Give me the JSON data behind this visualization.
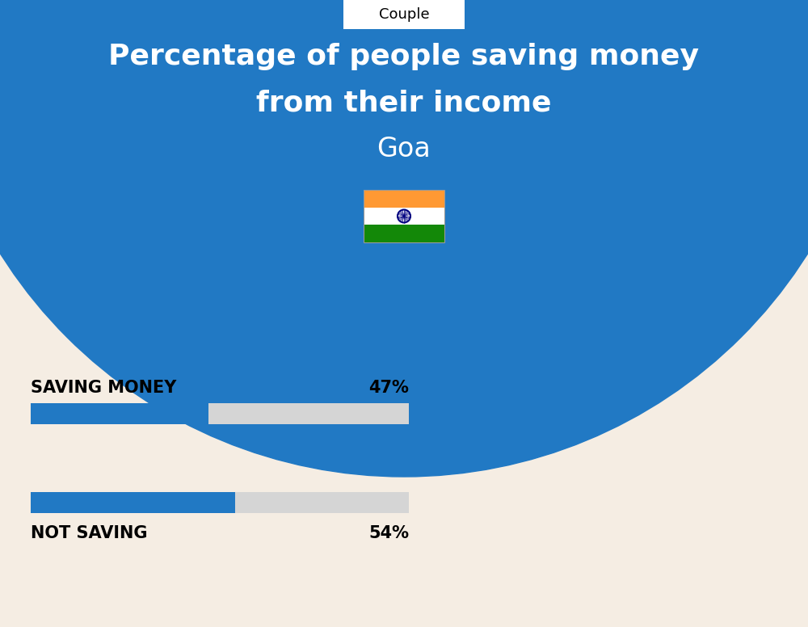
{
  "title_line1": "Percentage of people saving money",
  "title_line2": "from their income",
  "subtitle": "Goa",
  "tab_label": "Couple",
  "background_color": "#F5EDE3",
  "blue_color": "#2179C4",
  "bar_bg_color": "#D5D5D5",
  "bar_active_color": "#2179C4",
  "category1_label": "SAVING MONEY",
  "category1_value": 47,
  "category1_pct": "47%",
  "category2_label": "NOT SAVING",
  "category2_value": 54,
  "category2_pct": "54%",
  "bar_max": 100,
  "title_color": "#FFFFFF",
  "subtitle_color": "#FFFFFF",
  "label_color": "#000000",
  "tab_color": "#FFFFFF",
  "tab_text_color": "#000000"
}
